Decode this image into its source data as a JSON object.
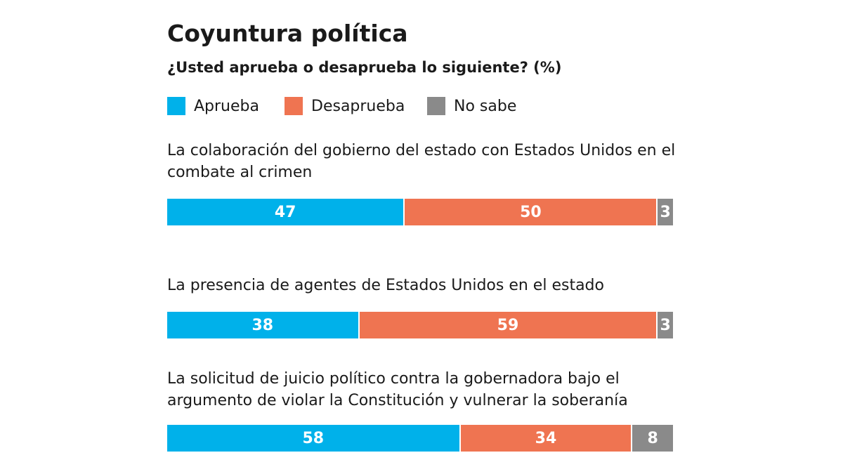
{
  "chart_data": {
    "type": "stacked-bar",
    "title": "Coyuntura política",
    "subtitle": "¿Usted aprueba o desaprueba lo siguiente? (%)",
    "categories": [
      "La colaboración del gobierno del estado con Estados Unidos en el combate al crimen",
      "La presencia de agentes de Estados Unidos en el estado",
      "La solicitud de juicio político contra la gobernadora bajo el argumento de violar la Constitución y vulnerar la soberanía"
    ],
    "series": [
      {
        "name": "Aprueba",
        "color": "#00b1ea",
        "values": [
          47,
          38,
          58
        ]
      },
      {
        "name": "Desaprueba",
        "color": "#ef7451",
        "values": [
          50,
          59,
          34
        ]
      },
      {
        "name": "No sabe",
        "color": "#8a8a8a",
        "values": [
          3,
          3,
          8
        ]
      }
    ],
    "xlim": [
      0,
      100
    ]
  }
}
